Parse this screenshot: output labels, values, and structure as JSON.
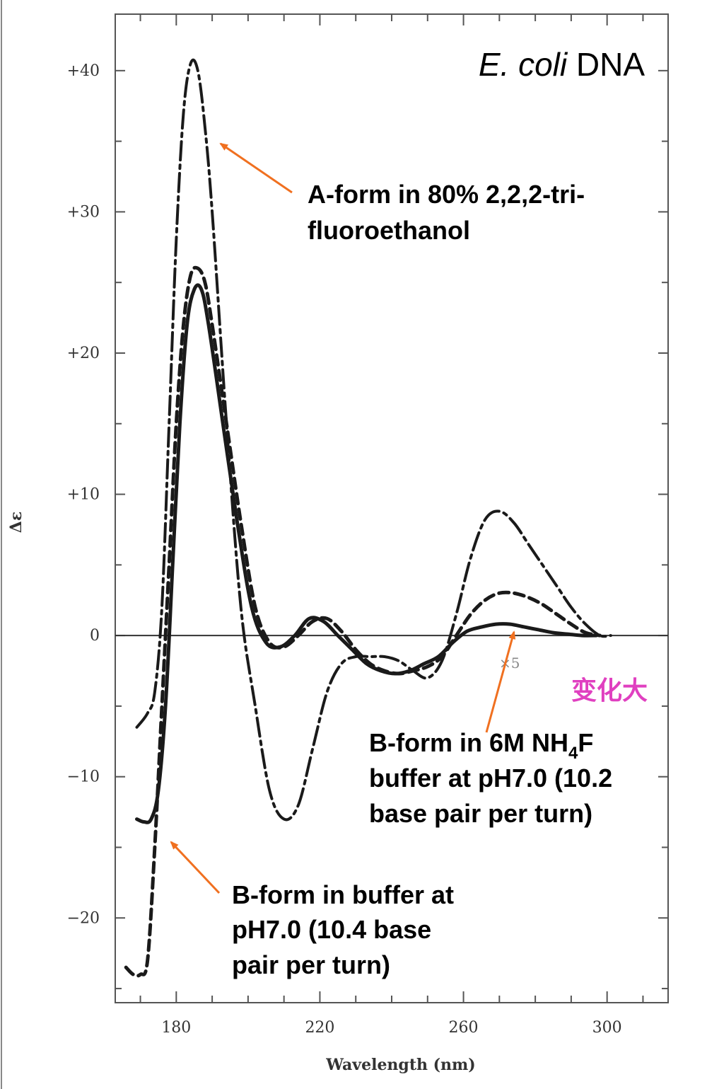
{
  "chart_data": {
    "type": "line",
    "title": "E. coli DNA",
    "title_parts": {
      "italic": "E. coli",
      "normal": " DNA"
    },
    "xlabel": "Wavelength (nm)",
    "ylabel": "Δε",
    "xlim": [
      163,
      317
    ],
    "ylim": [
      -26,
      44
    ],
    "x_ticks": [
      180,
      220,
      260,
      300
    ],
    "x_tick_labels": [
      "180",
      "220",
      "260",
      "300"
    ],
    "y_ticks": [
      40,
      30,
      20,
      10,
      0,
      -10,
      -20
    ],
    "y_tick_labels": [
      "+40",
      "+30",
      "+20",
      "+10",
      "0",
      "−10",
      "−20"
    ],
    "grid": false,
    "series": [
      {
        "name": "A-form in 80% 2,2,2-trifluoroethanol",
        "style": "dash-dot-long",
        "x": [
          169,
          172,
          174,
          176,
          178,
          180,
          182,
          184,
          186,
          188,
          190,
          194,
          198,
          202,
          206,
          210,
          214,
          218,
          222,
          226,
          230,
          234,
          238,
          242,
          246,
          250,
          254,
          258,
          262,
          266,
          270,
          274,
          278,
          282,
          286,
          290,
          294,
          298,
          301
        ],
        "y": [
          -6.5,
          -5.5,
          -4,
          2,
          15,
          28,
          37,
          40.5,
          40,
          36,
          30,
          15,
          2,
          -5,
          -11,
          -13,
          -12,
          -8,
          -4,
          -2,
          -1.5,
          -1.5,
          -1.5,
          -1.8,
          -2.5,
          -3,
          -1.8,
          1.5,
          5.5,
          8.2,
          8.8,
          8,
          6.5,
          5,
          3.5,
          2,
          0.8,
          0,
          0
        ]
      },
      {
        "name": "B-form in buffer at pH7.0 (10.4 base pair per turn)",
        "style": "dashed",
        "x": [
          166,
          168,
          170,
          172,
          174,
          176,
          178,
          180,
          182,
          184,
          186,
          188,
          190,
          194,
          198,
          202,
          206,
          210,
          214,
          218,
          222,
          226,
          230,
          234,
          238,
          242,
          246,
          250,
          254,
          258,
          262,
          266,
          270,
          274,
          278,
          282,
          286,
          290,
          294,
          298
        ],
        "y": [
          -23.5,
          -24,
          -24,
          -23,
          -15,
          -5,
          5,
          15,
          22,
          25.5,
          26,
          25,
          22,
          15,
          8,
          2,
          -0.5,
          -0.8,
          0,
          1,
          1.2,
          0.3,
          -1,
          -2,
          -2.5,
          -2.7,
          -2.5,
          -2.2,
          -1.5,
          0,
          1.5,
          2.5,
          3,
          3,
          2.7,
          2.2,
          1.5,
          0.8,
          0.2,
          0
        ]
      },
      {
        "name": "B-form in 6M NH4F buffer at pH7.0 (10.2 base pair per turn)",
        "style": "solid",
        "x": [
          169,
          171,
          173,
          175,
          177,
          179,
          181,
          183,
          185,
          187,
          189,
          193,
          197,
          201,
          205,
          209,
          213,
          217,
          221,
          225,
          229,
          233,
          237,
          241,
          245,
          249,
          253,
          257,
          261,
          265,
          269,
          273,
          277,
          281,
          285,
          289,
          293,
          297
        ],
        "y": [
          -13,
          -13.2,
          -13,
          -11,
          -5,
          5,
          15,
          22,
          24.5,
          24.5,
          22,
          15,
          8,
          2,
          -0.5,
          -0.8,
          0,
          1.2,
          1,
          0,
          -1,
          -2,
          -2.5,
          -2.7,
          -2.5,
          -2,
          -1.5,
          -0.5,
          0.3,
          0.6,
          0.8,
          0.8,
          0.6,
          0.4,
          0.2,
          0.1,
          0,
          0
        ]
      }
    ],
    "annotations": {
      "a_form": {
        "line1": "A-form in 80% 2,2,2-tri-",
        "line2": "fluoroethanol"
      },
      "b_form_nh4f": {
        "line1_prefix": "B-form in 6M NH",
        "line1_sub": "4",
        "line1_suffix": "F",
        "line2": "buffer at pH7.0 (10.2",
        "line3": "base pair per turn)"
      },
      "b_form_buffer": {
        "line1": "B-form in buffer at",
        "line2": "pH7.0 (10.4 base",
        "line3": "pair per turn)"
      },
      "scale_mark": "×5",
      "handwritten": "变化大"
    },
    "colors": {
      "curve": "#1a1a1a",
      "arrow": "#f07020",
      "handwritten": "#e040c0",
      "axis": "#333333",
      "frame": "#555555"
    }
  }
}
